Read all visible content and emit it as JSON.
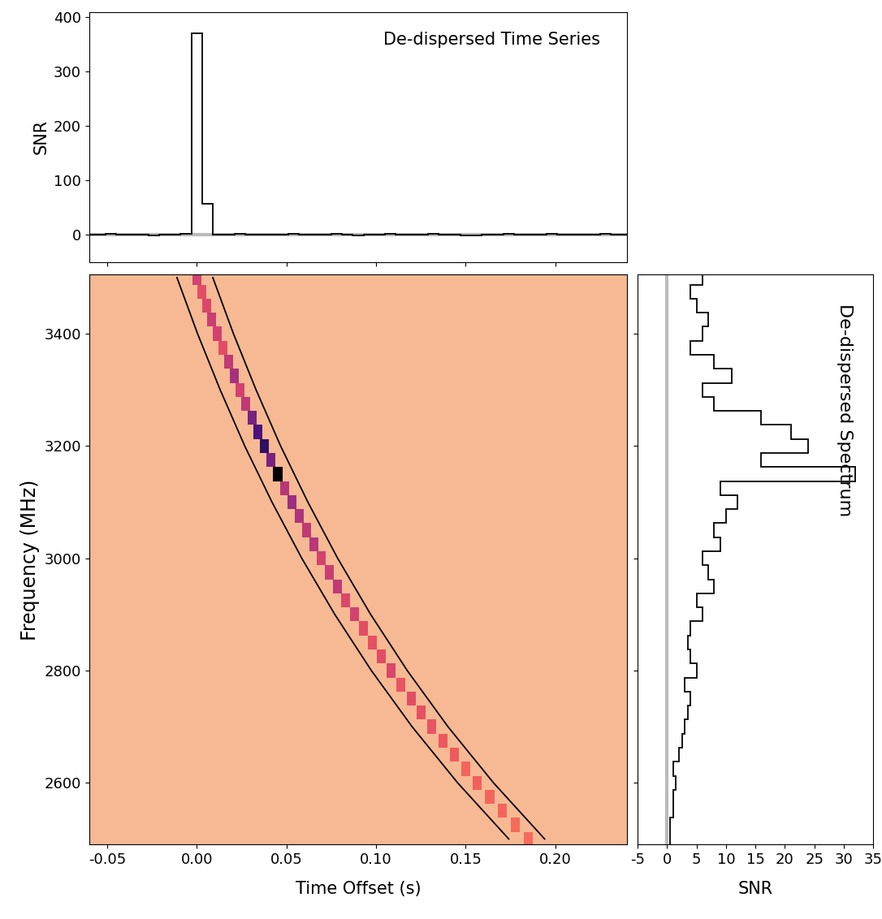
{
  "chart_data": [
    {
      "type": "step",
      "title": "De-dispersed Time Series",
      "y_label": "SNR",
      "tick_labels": "y",
      "bins": [
        -0.063,
        -0.057,
        -0.051,
        -0.045,
        -0.039,
        -0.033,
        -0.027,
        -0.021,
        -0.015,
        -0.009,
        -0.003,
        0.003,
        0.009,
        0.015,
        0.021,
        0.027,
        0.033,
        0.039,
        0.045,
        0.051,
        0.057,
        0.063,
        0.069,
        0.075,
        0.081,
        0.087,
        0.093,
        0.099,
        0.105,
        0.111,
        0.117,
        0.123,
        0.129,
        0.135,
        0.141,
        0.147,
        0.153,
        0.159,
        0.165,
        0.171,
        0.177,
        0.183,
        0.189,
        0.195,
        0.201,
        0.207,
        0.213,
        0.219,
        0.225,
        0.231,
        0.237,
        0.243
      ],
      "values": [
        0.5,
        0,
        1,
        -0.5,
        0,
        0.5,
        -1,
        0,
        0.5,
        1,
        370,
        57,
        -0.5,
        0,
        1,
        0.5,
        -0.5,
        0,
        0.5,
        1,
        0,
        -0.5,
        0.5,
        1.5,
        0,
        -1,
        0.5,
        0,
        1,
        0.5,
        -0.5,
        0,
        1,
        0.5,
        0,
        -1.5,
        -1,
        0,
        0.5,
        1,
        0,
        -0.5,
        0.5,
        1,
        0,
        0.5,
        -0.5,
        0,
        1,
        0.5,
        0
      ],
      "color": "#000000",
      "xlim": [
        -0.06,
        0.24
      ],
      "xticks": [
        {
          "value": -0.05,
          "label": "-0.05"
        },
        {
          "value": 0.0,
          "label": "0.00"
        },
        {
          "value": 0.05,
          "label": "0.05"
        },
        {
          "value": 0.1,
          "label": "0.10"
        },
        {
          "value": 0.15,
          "label": "0.15"
        },
        {
          "value": 0.2,
          "label": "0.20"
        }
      ],
      "ylim": [
        -50,
        410
      ],
      "yticks": [
        0,
        100,
        200,
        300,
        400
      ]
    },
    {
      "type": "heatmap",
      "x_label": "Time Offset (s)",
      "y_label": "Frequency (MHz)",
      "pulse": {
        "frequency": [
          2500,
          2525,
          2550,
          2575,
          2600,
          2625,
          2650,
          2675,
          2700,
          2725,
          2750,
          2775,
          2800,
          2825,
          2850,
          2875,
          2900,
          2925,
          2950,
          2975,
          3000,
          3025,
          3050,
          3075,
          3100,
          3125,
          3150,
          3175,
          3200,
          3225,
          3250,
          3275,
          3300,
          3325,
          3350,
          3375,
          3400,
          3425,
          3450,
          3475,
          3500
        ],
        "time": [
          0.185,
          0.1776,
          0.1704,
          0.1634,
          0.1565,
          0.1499,
          0.1435,
          0.1372,
          0.1311,
          0.1252,
          0.1195,
          0.1139,
          0.1084,
          0.1031,
          0.0979,
          0.0929,
          0.088,
          0.0832,
          0.0786,
          0.074,
          0.0696,
          0.0653,
          0.0611,
          0.057,
          0.053,
          0.049,
          0.0452,
          0.0415,
          0.0378,
          0.0343,
          0.0308,
          0.0274,
          0.0241,
          0.0208,
          0.0177,
          0.0145,
          0.0115,
          0.0085,
          0.0056,
          0.0028,
          0
        ],
        "intensity": [
          0.5,
          0.5,
          1,
          1,
          1.5,
          1,
          2,
          2.5,
          3,
          3.5,
          4,
          3,
          5,
          4,
          3.5,
          4,
          6,
          5,
          8,
          7,
          6,
          9,
          8,
          10,
          12,
          9,
          32,
          16,
          24,
          21,
          16,
          8,
          6,
          11,
          8,
          4,
          6,
          7,
          5,
          4,
          6
        ]
      },
      "bounds": [
        {
          "x": [
            -0.011,
            0.0005,
            0.0131,
            0.0268,
            0.042,
            0.0586,
            0.077,
            0.0974,
            0.1201,
            0.1455,
            0.174
          ],
          "y": [
            3500,
            3400,
            3300,
            3200,
            3100,
            3000,
            2900,
            2800,
            2700,
            2600,
            2500
          ],
          "color": "#000000"
        },
        {
          "x": [
            0.009,
            0.0205,
            0.0331,
            0.0468,
            0.062,
            0.0786,
            0.097,
            0.1174,
            0.1401,
            0.1655,
            0.194
          ],
          "y": [
            3500,
            3400,
            3300,
            3200,
            3100,
            3000,
            2900,
            2800,
            2700,
            2600,
            2500
          ],
          "color": "#000000"
        }
      ],
      "xlim": [
        -0.06,
        0.24
      ],
      "xticks": [
        {
          "value": -0.05,
          "label": "-0.05"
        },
        {
          "value": 0.0,
          "label": "0.00"
        },
        {
          "value": 0.05,
          "label": "0.05"
        },
        {
          "value": 0.1,
          "label": "0.10"
        },
        {
          "value": 0.15,
          "label": "0.15"
        },
        {
          "value": 0.2,
          "label": "0.20"
        }
      ],
      "ylim": [
        2490,
        3505
      ],
      "yticks": [
        2600,
        2800,
        3000,
        3200,
        3400
      ]
    },
    {
      "type": "step",
      "orientation": "horizontal",
      "title": "De-dispersed Spectrum",
      "x_label": "SNR",
      "tick_labels": "x",
      "bins": [
        2487.5,
        2512.5,
        2537.5,
        2562.5,
        2587.5,
        2612.5,
        2637.5,
        2662.5,
        2687.5,
        2712.5,
        2737.5,
        2762.5,
        2787.5,
        2812.5,
        2837.5,
        2862.5,
        2887.5,
        2912.5,
        2937.5,
        2962.5,
        2987.5,
        3012.5,
        3037.5,
        3062.5,
        3087.5,
        3112.5,
        3137.5,
        3162.5,
        3187.5,
        3212.5,
        3237.5,
        3262.5,
        3287.5,
        3312.5,
        3337.5,
        3362.5,
        3387.5,
        3412.5,
        3437.5,
        3462.5,
        3487.5,
        3512.5
      ],
      "values": [
        0.5,
        0.5,
        1,
        1,
        1.5,
        1,
        2,
        2.5,
        3,
        3.5,
        4,
        3,
        5,
        4,
        3.5,
        4,
        6,
        5,
        8,
        7,
        6,
        9,
        8,
        10,
        12,
        9,
        32,
        16,
        24,
        21,
        16,
        8,
        6,
        11,
        8,
        4,
        6,
        7,
        5,
        4,
        6
      ],
      "color": "#000000",
      "xlim": [
        -5,
        35
      ],
      "xticks": [
        -5,
        0,
        5,
        10,
        15,
        20,
        25,
        30,
        35
      ],
      "ylim": [
        2490,
        3505
      ],
      "yticks": [
        2600,
        2800,
        3000,
        3200,
        3400
      ]
    }
  ]
}
